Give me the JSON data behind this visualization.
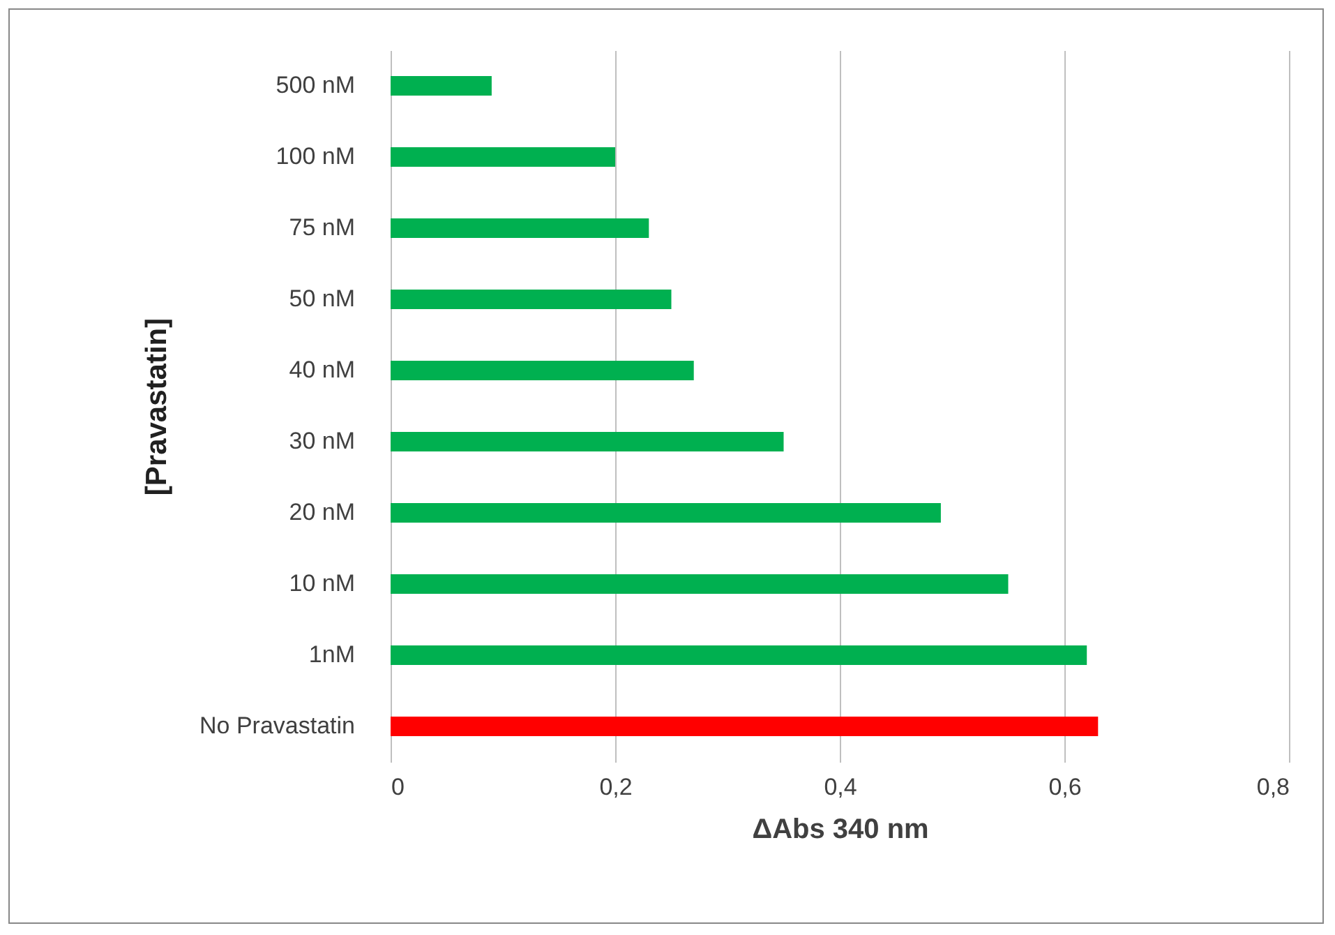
{
  "chart_data": {
    "type": "bar",
    "orientation": "horizontal",
    "xlabel": "ΔAbs 340 nm",
    "ylabel": "[Pravastatin]",
    "categories": [
      "500 nM",
      "100 nM",
      "75 nM",
      "50 nM",
      "40 nM",
      "30 nM",
      "20 nM",
      "10 nM",
      "1nM",
      "No Pravastatin"
    ],
    "values": [
      0.09,
      0.2,
      0.23,
      0.25,
      0.27,
      0.35,
      0.49,
      0.55,
      0.62,
      0.63
    ],
    "colors": [
      "#00b050",
      "#00b050",
      "#00b050",
      "#00b050",
      "#00b050",
      "#00b050",
      "#00b050",
      "#00b050",
      "#00b050",
      "#ff0000"
    ],
    "xlim": [
      0,
      0.8
    ],
    "xticks": [
      {
        "value": 0,
        "label": "0"
      },
      {
        "value": 0.2,
        "label": "0,2"
      },
      {
        "value": 0.4,
        "label": "0,4"
      },
      {
        "value": 0.6,
        "label": "0,6"
      },
      {
        "value": 0.8,
        "label": "0,8"
      }
    ],
    "grid": "x"
  }
}
